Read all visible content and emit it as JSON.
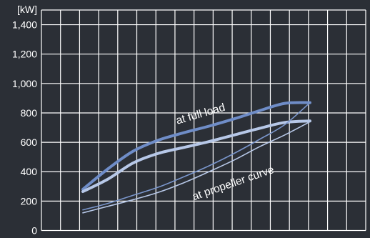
{
  "chart_data": {
    "type": "line",
    "title": "",
    "xlabel": "",
    "ylabel": "[kW]",
    "ylim": [
      0,
      1500
    ],
    "y_ticks": [
      "0",
      "200",
      "400",
      "600",
      "800",
      "1,000",
      "1,200",
      "1,400"
    ],
    "grid": true,
    "x_grid_divisions": 17,
    "x_ticks_labeled": false,
    "x": [
      0,
      1,
      2,
      3,
      4,
      5,
      6,
      7,
      8,
      9
    ],
    "series": [
      {
        "values": [
          280,
          420,
          540,
          615,
          665,
          710,
          760,
          815,
          865,
          870
        ],
        "color": "#6f8dc8",
        "stroke_width": 4
      },
      {
        "values": [
          265,
          350,
          460,
          525,
          565,
          605,
          650,
          695,
          735,
          745
        ],
        "color": "#b7c8e8",
        "stroke_width": 4
      },
      {
        "values": [
          140,
          185,
          240,
          295,
          365,
          440,
          525,
          620,
          720,
          870
        ],
        "color": "#7a96cc",
        "stroke_width": 1.6
      },
      {
        "values": [
          120,
          165,
          210,
          260,
          325,
          400,
          480,
          570,
          650,
          740
        ],
        "color": "#b7c8e8",
        "stroke_width": 1.6
      }
    ],
    "annotations": [
      {
        "text": "at full load",
        "x": 4.7,
        "y": 770,
        "angle": -16
      },
      {
        "text": "at propeller curve",
        "x": 6.0,
        "y": 300,
        "angle": -19
      }
    ],
    "colors": {
      "background": "#2b2f36",
      "grid": "#ffffff",
      "text": "#ffffff"
    }
  }
}
